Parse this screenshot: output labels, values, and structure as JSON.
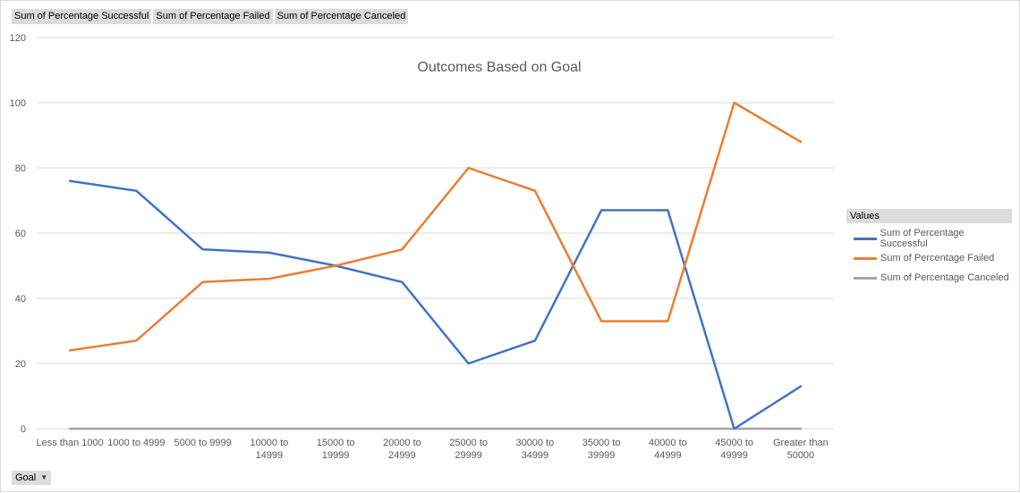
{
  "field_buttons": [
    "Sum of Percentage Successful",
    "Sum of Percentage Failed",
    "Sum of Percentage Canceled"
  ],
  "axis_field": {
    "label": "Goal",
    "icon": "dropdown-arrow-icon"
  },
  "legend": {
    "title": "Values"
  },
  "chart_data": {
    "type": "line",
    "title": "Outcomes Based on Goal",
    "xlabel": "",
    "ylabel": "",
    "ylim": [
      0,
      120
    ],
    "yticks": [
      0,
      20,
      40,
      60,
      80,
      100,
      120
    ],
    "grid": true,
    "legend_position": "right",
    "categories": [
      [
        "Less than 1000"
      ],
      [
        "1000 to 4999"
      ],
      [
        "5000 to 9999"
      ],
      [
        "10000 to",
        "14999"
      ],
      [
        "15000 to",
        "19999"
      ],
      [
        "20000 to",
        "24999"
      ],
      [
        "25000 to",
        "29999"
      ],
      [
        "30000 to",
        "34999"
      ],
      [
        "35000 to",
        "39999"
      ],
      [
        "40000 to",
        "44999"
      ],
      [
        "45000 to",
        "49999"
      ],
      [
        "Greater than",
        "50000"
      ]
    ],
    "series": [
      {
        "name": "Sum of Percentage Successful",
        "color": "#4472c4",
        "values": [
          76,
          73,
          55,
          54,
          50,
          45,
          20,
          27,
          67,
          67,
          0,
          13
        ]
      },
      {
        "name": "Sum of Percentage Failed",
        "color": "#ed7d31",
        "values": [
          24,
          27,
          45,
          46,
          50,
          55,
          80,
          73,
          33,
          33,
          100,
          88
        ]
      },
      {
        "name": "Sum of Percentage Canceled",
        "color": "#a5a5a5",
        "values": [
          0,
          0,
          0,
          0,
          0,
          0,
          0,
          0,
          0,
          0,
          0,
          0
        ]
      }
    ]
  }
}
